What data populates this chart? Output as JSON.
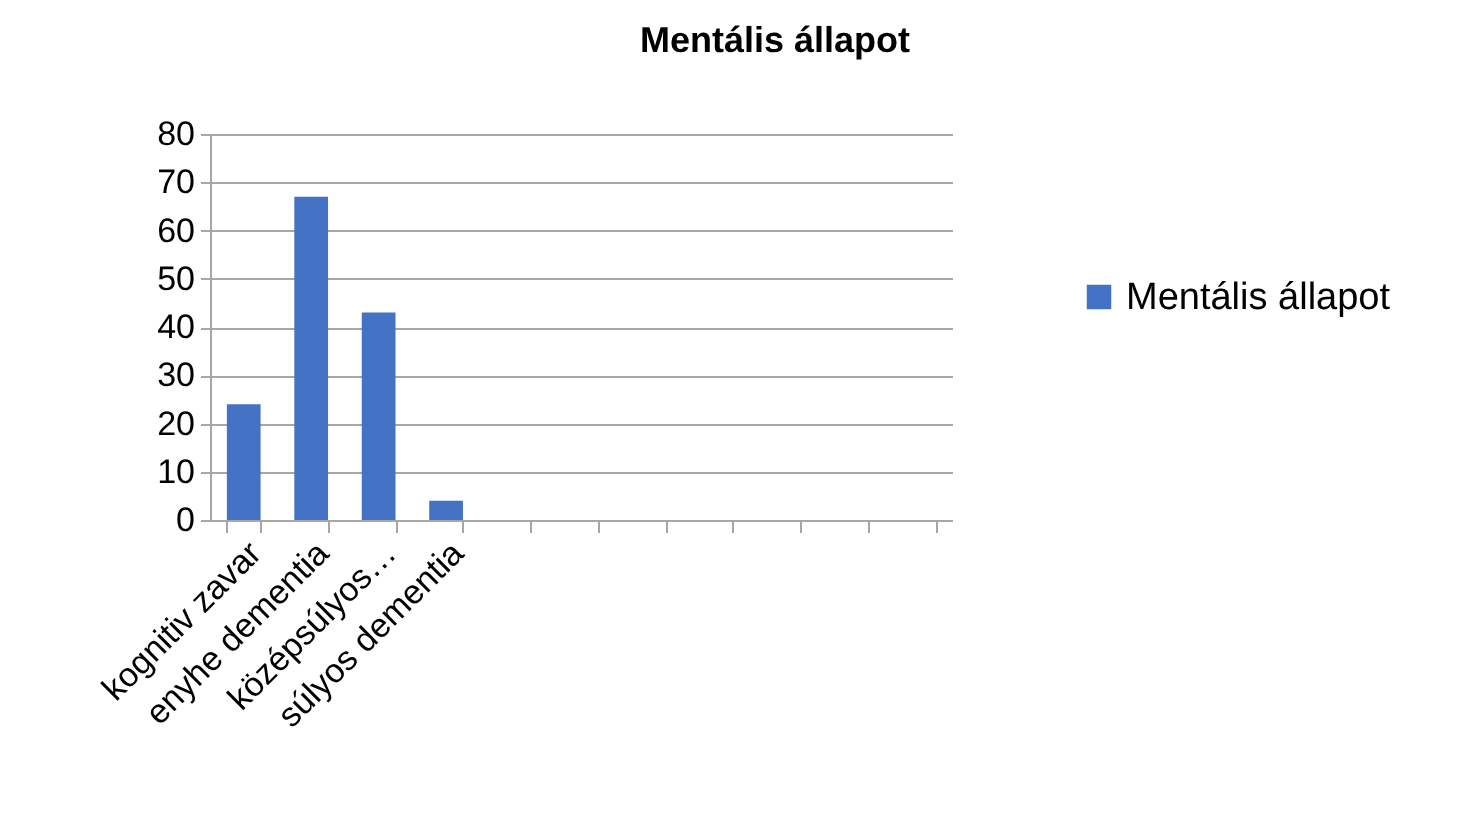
{
  "chart_data": {
    "type": "bar",
    "title": "Mentális állapot",
    "categories": [
      "kognitiv zavar",
      "enyhe dementia",
      "középsúlyos…",
      "súlyos dementia",
      null,
      null,
      null,
      null,
      null,
      null,
      null
    ],
    "series": [
      {
        "name": "Mentális állapot",
        "color": "#4472c4",
        "values": [
          24,
          67,
          43,
          4,
          null,
          null,
          null,
          null,
          null,
          null,
          null
        ]
      }
    ],
    "ylim": [
      0,
      80
    ],
    "yticks": [
      0,
      10,
      20,
      30,
      40,
      50,
      60,
      70,
      80
    ],
    "grid": "y",
    "legend": "right"
  }
}
